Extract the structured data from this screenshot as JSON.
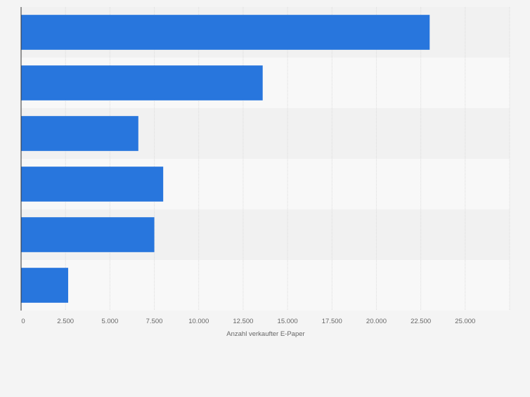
{
  "chart_data": {
    "type": "bar",
    "orientation": "horizontal",
    "categories": [
      "",
      "",
      "",
      "",
      "",
      ""
    ],
    "values": [
      23000,
      13600,
      6600,
      8000,
      7500,
      2650
    ],
    "xlabel": "Anzahl verkaufter E-Paper",
    "ylabel": "",
    "xlim": [
      0,
      27500
    ],
    "ticks": [
      0,
      2500,
      5000,
      7500,
      10000,
      12500,
      15000,
      17500,
      20000,
      22500,
      25000
    ],
    "tick_labels": [
      "0",
      "2.500",
      "5.000",
      "7.500",
      "10.000",
      "12.500",
      "15.000",
      "17.500",
      "20.000",
      "22.500",
      "25.000"
    ],
    "grid": true,
    "colors": {
      "bar": "#2876dd",
      "band_dark": "#f1f1f1",
      "band_light": "#f8f8f8",
      "grid": "#dcdcdc",
      "axis": "#333333",
      "text": "#666666"
    }
  }
}
